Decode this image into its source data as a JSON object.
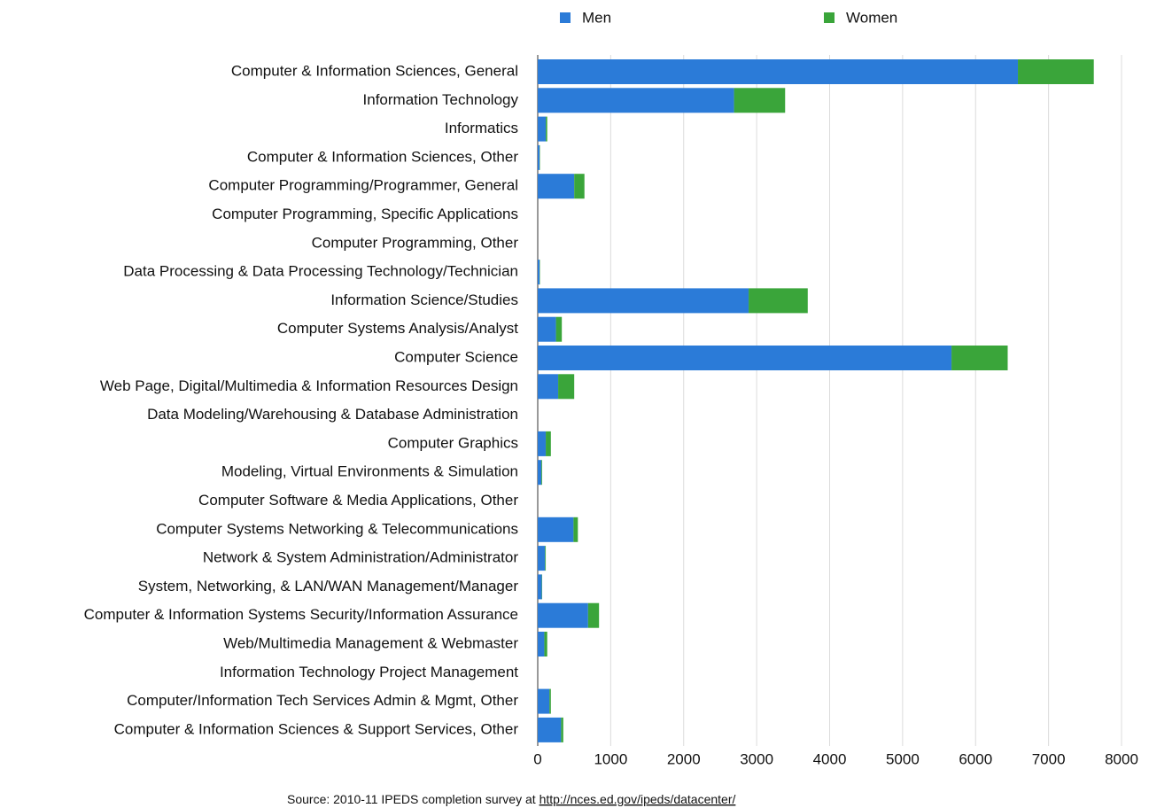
{
  "chart_data": {
    "type": "bar",
    "orientation": "horizontal",
    "stacked": true,
    "categories": [
      "Computer & Information Sciences, General",
      "Information Technology",
      "Informatics",
      "Computer & Information Sciences, Other",
      "Computer Programming/Programmer, General",
      "Computer Programming, Specific Applications",
      "Computer Programming, Other",
      "Data Processing & Data Processing Technology/Technician",
      "Information Science/Studies",
      "Computer Systems Analysis/Analyst",
      "Computer Science",
      "Web Page, Digital/Multimedia & Information Resources Design",
      "Data Modeling/Warehousing & Database Administration",
      "Computer Graphics",
      "Modeling, Virtual Environments & Simulation",
      "Computer Software & Media Applications, Other",
      "Computer Systems Networking & Telecommunications",
      "Network & System Administration/Administrator",
      "System, Networking, & LAN/WAN Management/Manager",
      "Computer & Information Systems Security/Information Assurance",
      "Web/Multimedia Management & Webmaster",
      "Information Technology Project Management",
      "Computer/Information Tech Services Admin & Mgmt, Other",
      "Computer & Information Sciences & Support Services, Other"
    ],
    "series": [
      {
        "name": "Men",
        "color": "#2b7bd8",
        "values": [
          6580,
          2690,
          110,
          25,
          500,
          0,
          0,
          25,
          2890,
          250,
          5670,
          280,
          0,
          110,
          50,
          0,
          490,
          100,
          55,
          690,
          90,
          0,
          160,
          320
        ]
      },
      {
        "name": "Women",
        "color": "#3aa53a",
        "values": [
          1040,
          700,
          20,
          5,
          140,
          0,
          0,
          5,
          810,
          80,
          770,
          220,
          0,
          70,
          10,
          0,
          60,
          10,
          5,
          150,
          40,
          0,
          20,
          30
        ]
      }
    ],
    "xlim": [
      0,
      8000
    ],
    "xticks": [
      0,
      1000,
      2000,
      3000,
      4000,
      5000,
      6000,
      7000,
      8000
    ],
    "grid": true,
    "source": "Source: 2010-11 IPEDS completion survey at",
    "source_link": "http://nces.ed.gov/ipeds/datacenter/"
  }
}
